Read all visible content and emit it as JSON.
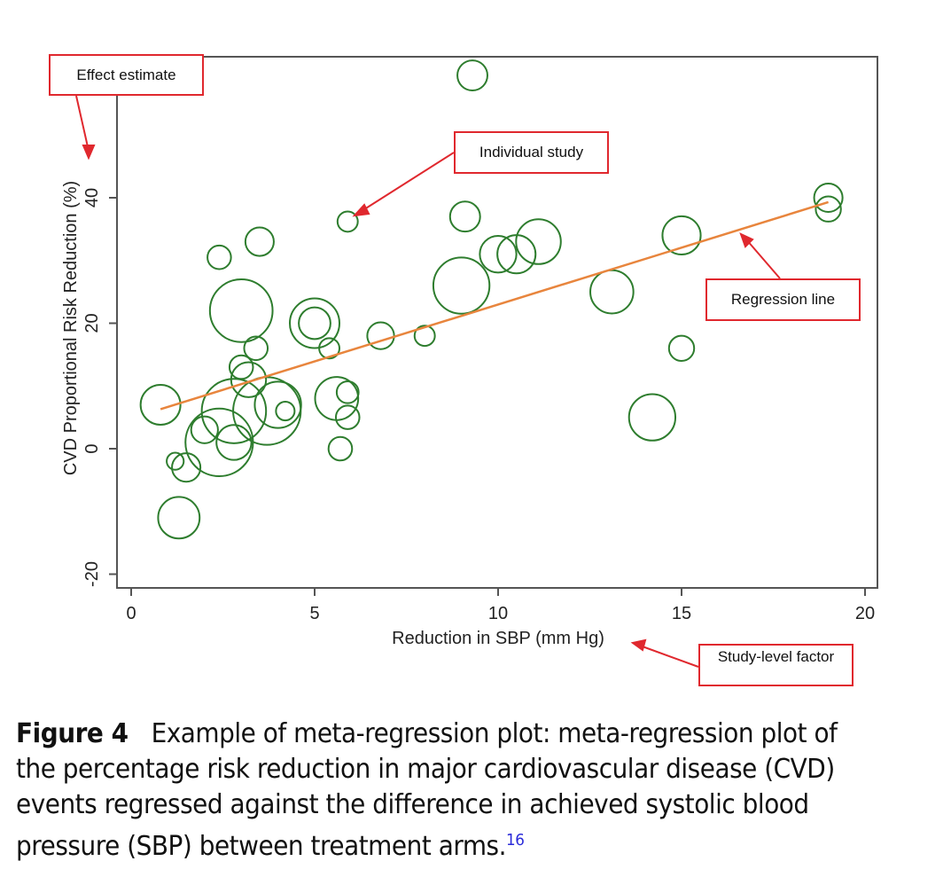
{
  "chart_data": {
    "type": "scatter",
    "subtype": "bubble",
    "xlabel": "Reduction in SBP (mm Hg)",
    "ylabel": "CVD Proportional Risk Reduction (%)",
    "xlim": [
      -0.3,
      20.3
    ],
    "ylim": [
      -22,
      62
    ],
    "xticks": [
      0,
      5,
      10,
      15,
      20
    ],
    "yticks": [
      -20,
      0,
      20,
      40
    ],
    "grid": false,
    "legend": "none",
    "colors": {
      "bubble": "#2e7d2e",
      "regression": "#e8853d",
      "annotation": "#e0282e",
      "axis": "#555555"
    },
    "regression_line": {
      "x": [
        0.8,
        19.0
      ],
      "y": [
        6.3,
        39.3
      ]
    },
    "points": [
      {
        "x": 9.3,
        "y": 59.5,
        "size": 1.3
      },
      {
        "x": 19.0,
        "y": 40.0,
        "size": 1.2
      },
      {
        "x": 19.0,
        "y": 38.2,
        "size": 1.0
      },
      {
        "x": 5.9,
        "y": 36.2,
        "size": 0.7
      },
      {
        "x": 9.1,
        "y": 37.0,
        "size": 1.3
      },
      {
        "x": 3.5,
        "y": 33.0,
        "size": 1.2
      },
      {
        "x": 2.4,
        "y": 30.5,
        "size": 0.9
      },
      {
        "x": 15.0,
        "y": 34.0,
        "size": 1.8
      },
      {
        "x": 11.1,
        "y": 33.0,
        "size": 2.2
      },
      {
        "x": 10.5,
        "y": 31.0,
        "size": 1.8
      },
      {
        "x": 10.0,
        "y": 31.0,
        "size": 1.7
      },
      {
        "x": 9.0,
        "y": 26.0,
        "size": 2.9
      },
      {
        "x": 13.1,
        "y": 25.0,
        "size": 2.1
      },
      {
        "x": 3.0,
        "y": 22.0,
        "size": 3.3
      },
      {
        "x": 5.0,
        "y": 20.0,
        "size": 2.5
      },
      {
        "x": 5.0,
        "y": 20.0,
        "size": 1.4
      },
      {
        "x": 5.4,
        "y": 16.0,
        "size": 0.7
      },
      {
        "x": 3.4,
        "y": 16.0,
        "size": 0.9
      },
      {
        "x": 6.8,
        "y": 18.0,
        "size": 1.1
      },
      {
        "x": 8.0,
        "y": 18.0,
        "size": 0.7
      },
      {
        "x": 15.0,
        "y": 16.0,
        "size": 1.0
      },
      {
        "x": 3.0,
        "y": 13.0,
        "size": 0.9
      },
      {
        "x": 3.2,
        "y": 11.0,
        "size": 1.6
      },
      {
        "x": 0.8,
        "y": 7.0,
        "size": 1.9
      },
      {
        "x": 5.6,
        "y": 8.0,
        "size": 2.1
      },
      {
        "x": 5.9,
        "y": 9.0,
        "size": 0.8
      },
      {
        "x": 5.9,
        "y": 5.0,
        "size": 0.9
      },
      {
        "x": 4.0,
        "y": 7.0,
        "size": 2.3
      },
      {
        "x": 4.2,
        "y": 6.0,
        "size": 0.6
      },
      {
        "x": 3.7,
        "y": 6.0,
        "size": 3.6
      },
      {
        "x": 2.8,
        "y": 6.0,
        "size": 3.4
      },
      {
        "x": 2.0,
        "y": 3.0,
        "size": 1.1
      },
      {
        "x": 2.4,
        "y": 1.0,
        "size": 3.6
      },
      {
        "x": 2.8,
        "y": 1.0,
        "size": 1.6
      },
      {
        "x": 5.7,
        "y": 0.0,
        "size": 0.9
      },
      {
        "x": 14.2,
        "y": 5.0,
        "size": 2.3
      },
      {
        "x": 1.2,
        "y": -2.0,
        "size": 0.5
      },
      {
        "x": 1.5,
        "y": -3.0,
        "size": 1.2
      },
      {
        "x": 1.3,
        "y": -11.0,
        "size": 2.0
      }
    ]
  },
  "annotations": {
    "effect_estimate": "Effect estimate",
    "individual_study": "Individual study",
    "regression_line": "Regression line",
    "study_level_factor": "Study-level factor"
  },
  "caption": {
    "label": "Figure 4",
    "text": "Example of meta-regression plot: meta-regression plot of the percentage risk reduction in major cardiovascular disease (CVD) events regressed against the difference in achieved systolic blood pressure (SBP) between treatment arms.",
    "ref": "16"
  }
}
